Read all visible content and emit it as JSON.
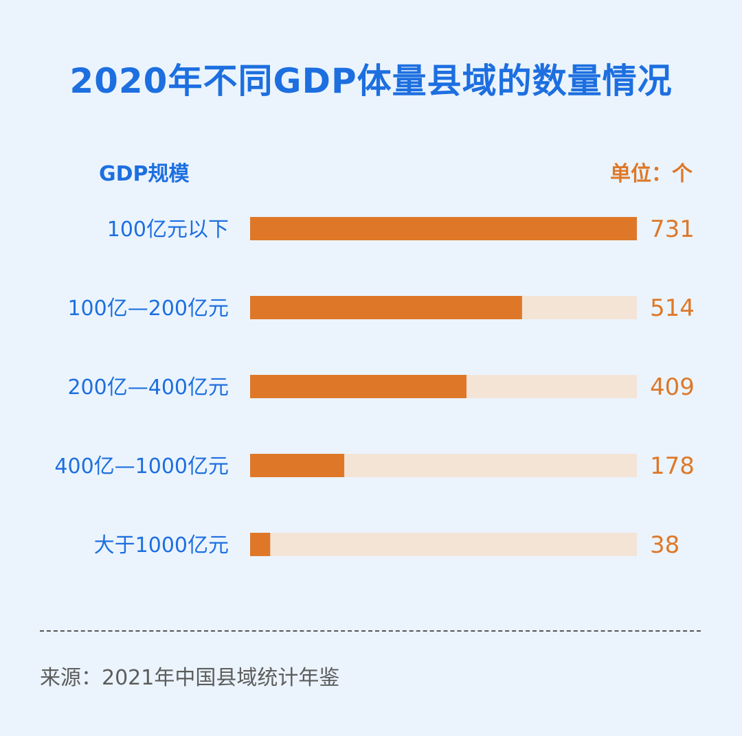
{
  "chart_data": {
    "type": "bar",
    "orientation": "horizontal",
    "title": "2020年不同GDP体量县域的数量情况",
    "category_header": "GDP规模",
    "unit_label": "单位：个",
    "categories": [
      "100亿元以下",
      "100亿—200亿元",
      "200亿—400亿元",
      "400亿—1000亿元",
      "大于1000亿元"
    ],
    "values": [
      731,
      514,
      409,
      178,
      38
    ],
    "xlim": [
      0,
      731
    ],
    "grid": false,
    "legend": "none",
    "colors": {
      "bar": "#de7828",
      "track": "#f3e4d6",
      "category_text": "#1d6fe0",
      "value_text": "#de7828",
      "title_text": "#1d6fe0"
    }
  },
  "footer": {
    "source": "来源：2021年中国县域统计年鉴"
  }
}
